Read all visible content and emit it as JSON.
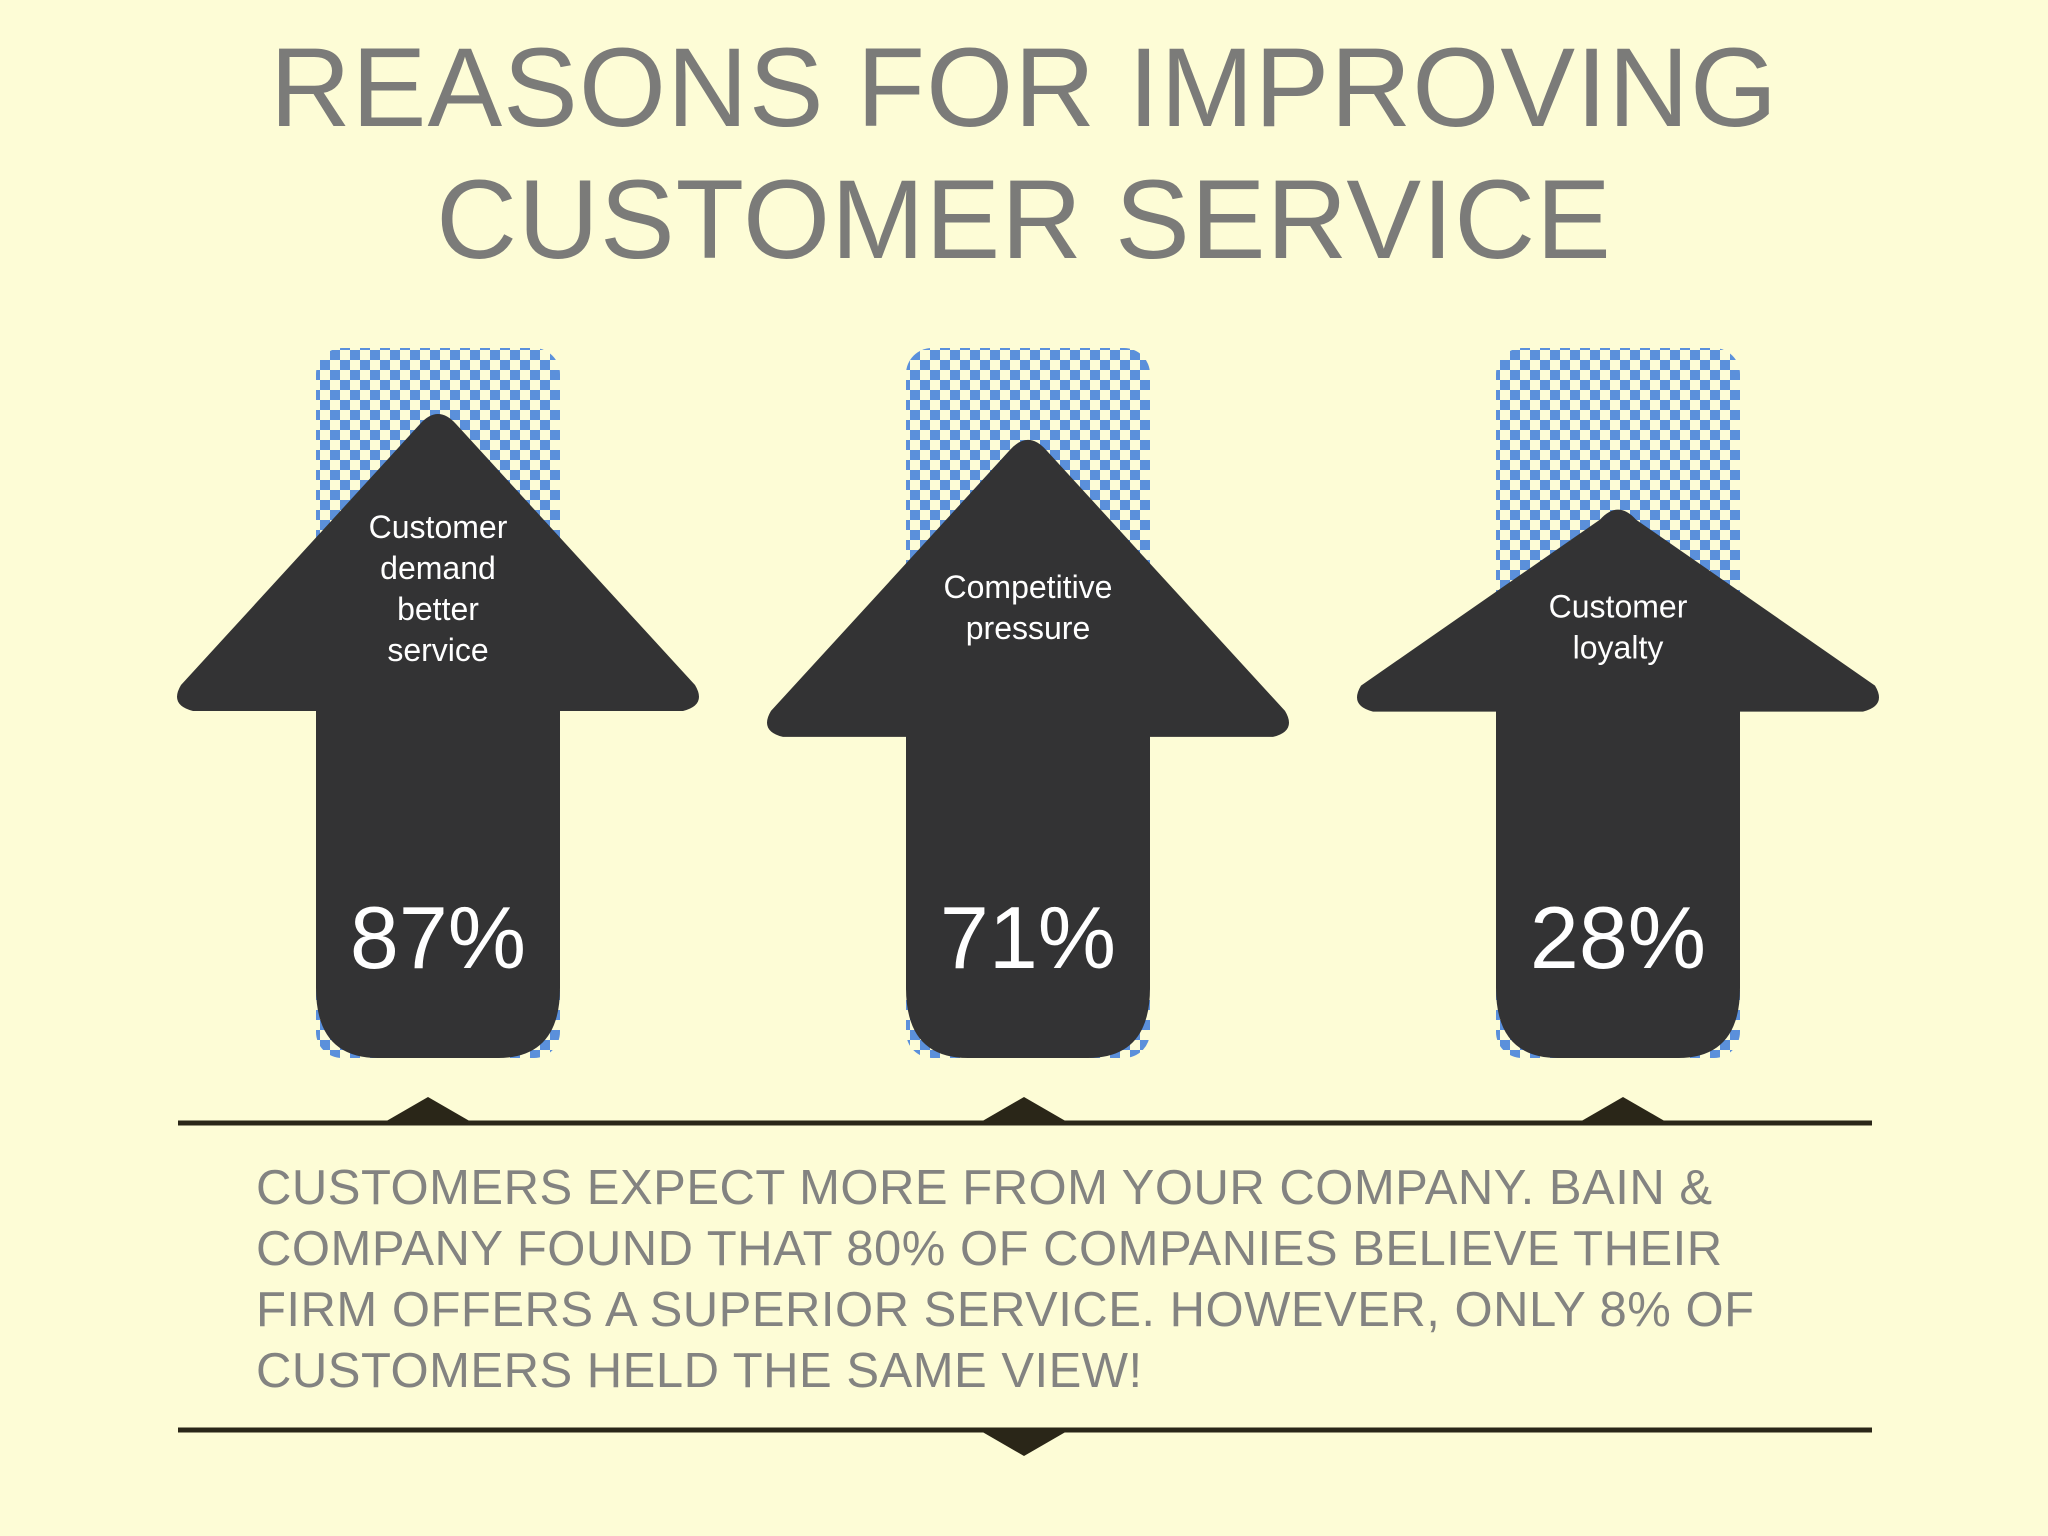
{
  "header": {
    "title_line1": "REASONS FOR IMPROVING",
    "title_line2": "CUSTOMER SERVICE"
  },
  "colors": {
    "background": "#fdfcd6",
    "arrow": "#333334",
    "check_blue": "#5b90db",
    "check_light": "#fdfcd6",
    "text_gray": "#7b7b79",
    "line": "#2a2618"
  },
  "chart_data": {
    "type": "bar",
    "categories": [
      "Customer demand better service",
      "Competitive pressure",
      "Customer loyalty"
    ],
    "values": [
      87,
      71,
      28
    ],
    "value_labels": [
      "87%",
      "71%",
      "28%"
    ],
    "label_lines": [
      [
        "Customer",
        "demand",
        "better",
        "service"
      ],
      [
        "Competitive",
        "pressure"
      ],
      [
        "Customer",
        "loyalty"
      ]
    ],
    "ylim": [
      0,
      100
    ]
  },
  "caption": {
    "line1": "CUSTOMERS EXPECT MORE FROM YOUR COMPANY. BAIN &",
    "line2": "COMPANY FOUND THAT 80% OF COMPANIES BELIEVE THEIR",
    "line3": "FIRM OFFERS A SUPERIOR SERVICE. HOWEVER, ONLY 8% OF",
    "line4": "CUSTOMERS HELD THE SAME VIEW!"
  }
}
